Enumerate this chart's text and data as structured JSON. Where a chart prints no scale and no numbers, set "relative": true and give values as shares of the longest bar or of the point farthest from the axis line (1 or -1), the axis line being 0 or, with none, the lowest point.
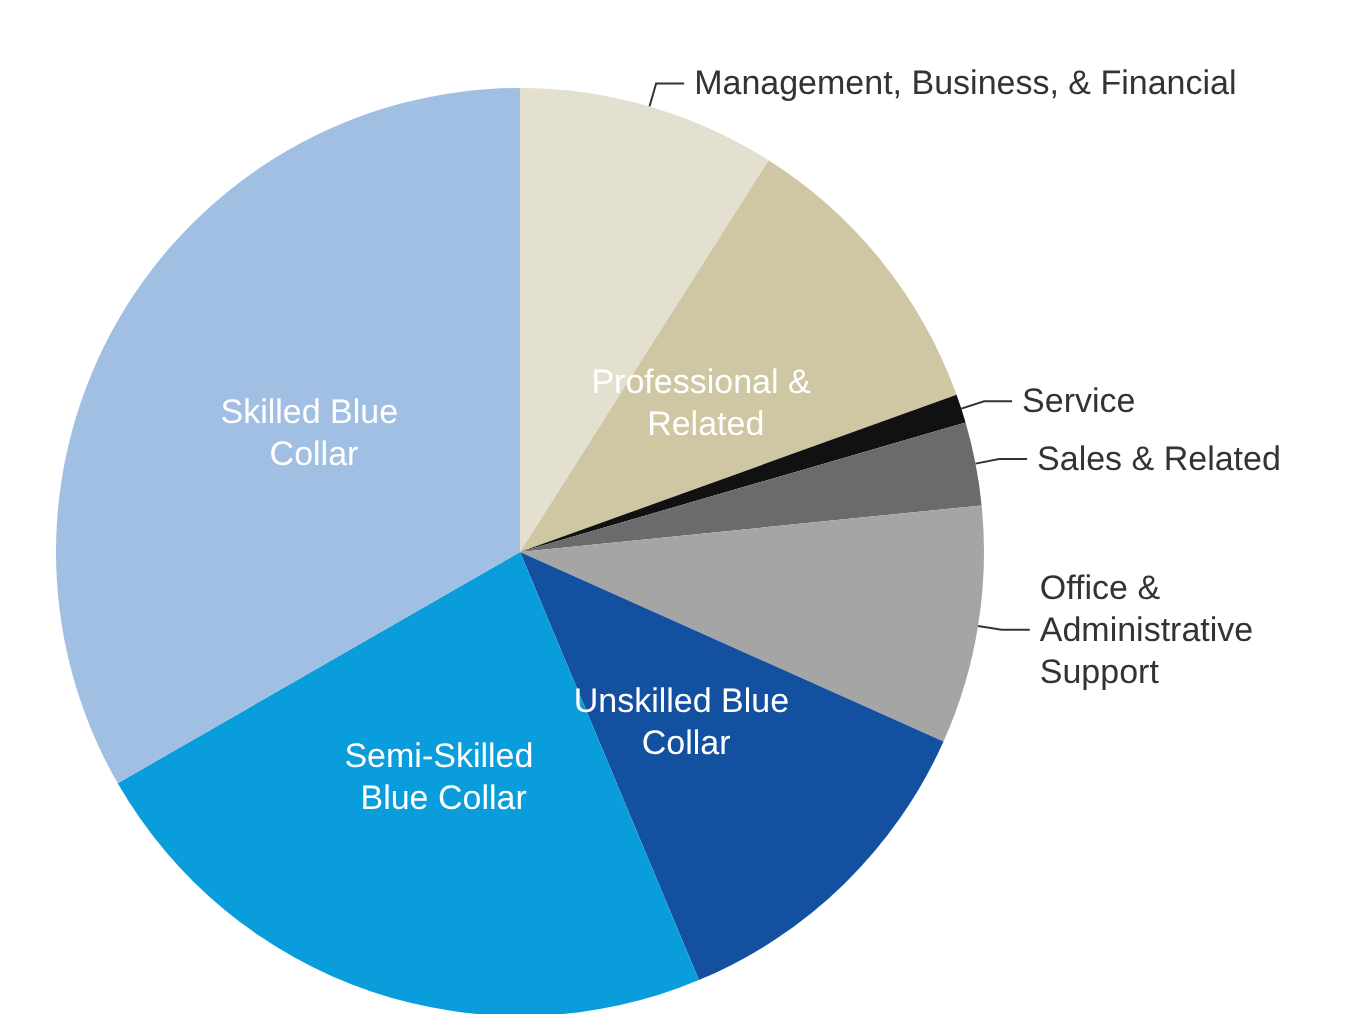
{
  "chart_data": {
    "type": "pie",
    "relative": true,
    "legend": false,
    "categories": [
      "Management, Business, & Financial",
      "Professional & Related",
      "Service",
      "Sales & Related",
      "Office & Administrative Support",
      "Unskilled Blue Collar",
      "Semi-Skilled Blue Collar",
      "Skilled Blue Collar"
    ],
    "values": [
      9,
      10.5,
      1,
      2.9,
      8.3,
      12,
      23,
      33.3
    ],
    "colors": [
      "#e4e0cf",
      "#cfc6a4",
      "#111111",
      "#6b6b6b",
      "#a5a5a5",
      "#1450a0",
      "#0a9ddb",
      "#a0bfe3"
    ]
  }
}
